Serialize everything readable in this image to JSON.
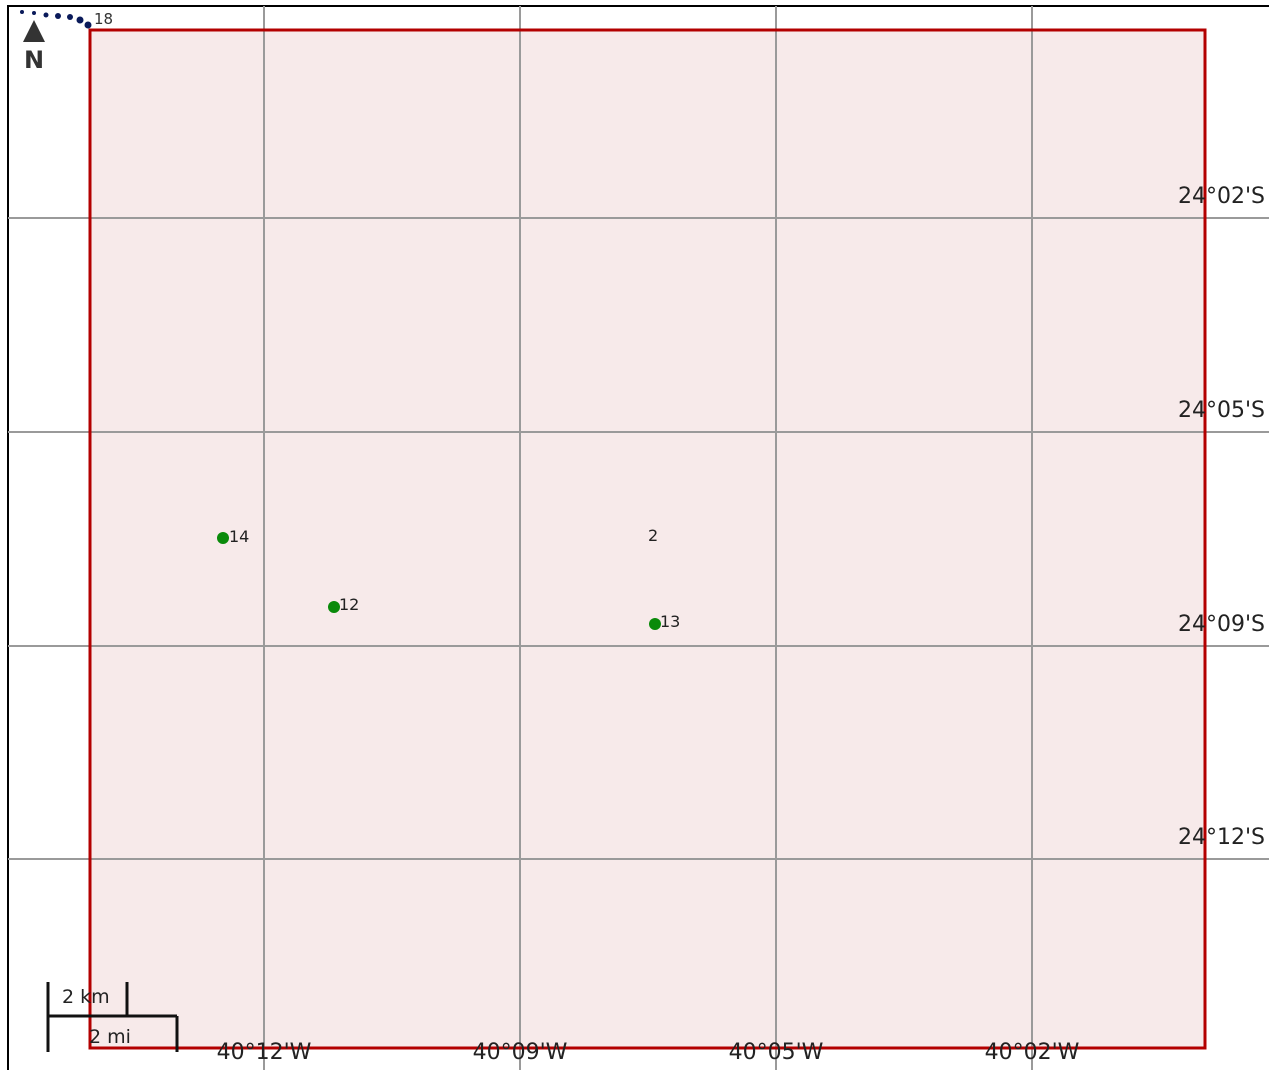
{
  "map": {
    "north_label": "N",
    "corner_label": "18",
    "lat_labels": [
      "24°02'S",
      "24°05'S",
      "24°09'S",
      "24°12'S"
    ],
    "lon_labels": [
      "40°12'W",
      "40°09'W",
      "40°05'W",
      "40°02'W"
    ],
    "points": [
      {
        "label": "14"
      },
      {
        "label": "12"
      },
      {
        "label": "13"
      }
    ],
    "free_labels": [
      "2"
    ],
    "scale_bar": {
      "km": "2 km",
      "mi": "2 mi"
    }
  }
}
